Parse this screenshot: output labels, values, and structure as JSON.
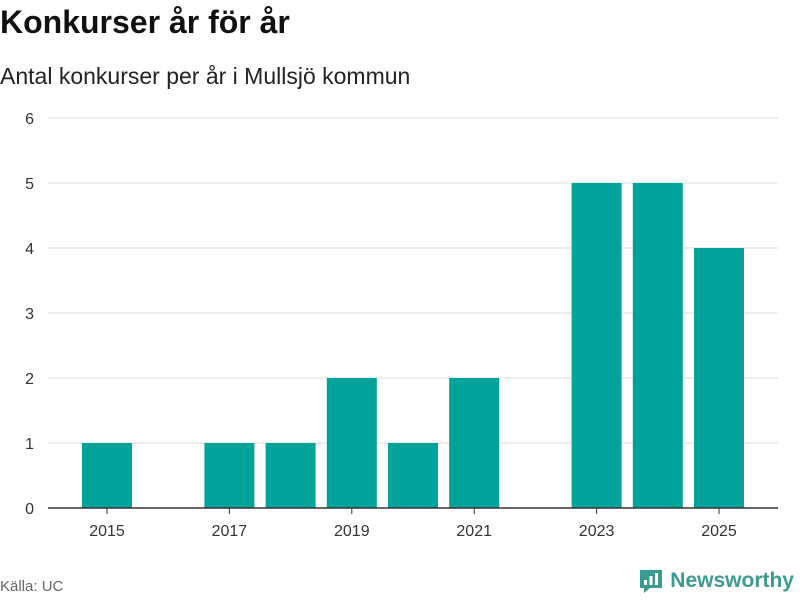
{
  "title": "Konkurser år för år",
  "subtitle": "Antal konkurser per år i Mullsjö kommun",
  "source": "Källa: UC",
  "brand": {
    "name": "Newsworthy",
    "icon": "newsworthy-logo-icon"
  },
  "colors": {
    "bar": "#00a39a",
    "grid": "#dddddd",
    "axis": "#333333",
    "brand": "#3b9a92"
  },
  "chart_data": {
    "type": "bar",
    "title": "Konkurser år för år",
    "subtitle": "Antal konkurser per år i Mullsjö kommun",
    "xlabel": "",
    "ylabel": "",
    "categories": [
      "2015",
      "2016",
      "2017",
      "2018",
      "2019",
      "2020",
      "2021",
      "2022",
      "2023",
      "2024",
      "2025"
    ],
    "values": [
      1,
      0,
      1,
      1,
      2,
      1,
      2,
      0,
      5,
      5,
      4
    ],
    "x_tick_labels": [
      "2015",
      "2017",
      "2019",
      "2021",
      "2023",
      "2025"
    ],
    "y_ticks": [
      0,
      1,
      2,
      3,
      4,
      5,
      6
    ],
    "ylim": [
      0,
      6
    ],
    "grid": true
  }
}
